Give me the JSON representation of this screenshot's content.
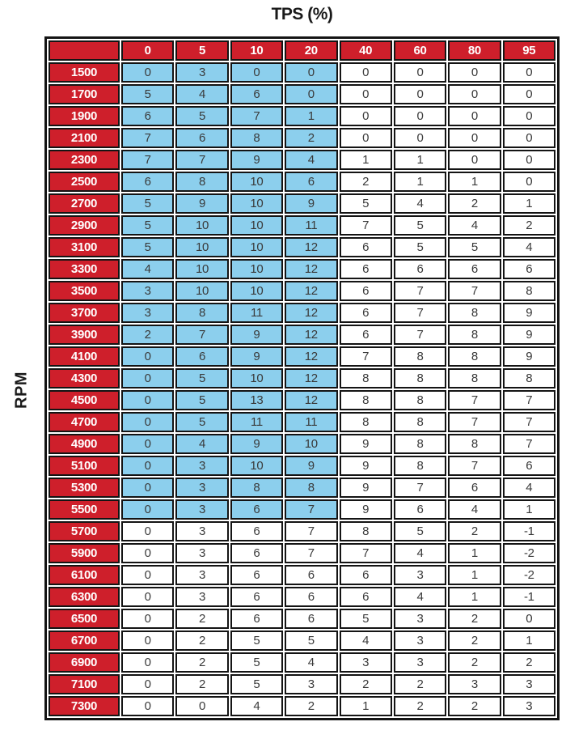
{
  "title": "TPS (%)",
  "y_axis_label": "RPM",
  "colors": {
    "header_red": "#ce1f2b",
    "highlight_blue": "#8ccfed",
    "grid_black": "#141414",
    "header_text": "#ffffff",
    "cell_text": "#3a3a3a",
    "background": "#ffffff"
  },
  "chart_data": {
    "type": "table",
    "title": "TPS (%)",
    "xlabel": "TPS (%)",
    "ylabel": "RPM",
    "columns": [
      "0",
      "5",
      "10",
      "20",
      "40",
      "60",
      "80",
      "95"
    ],
    "rows": [
      {
        "rpm": "1500",
        "values": [
          0,
          3,
          0,
          0,
          0,
          0,
          0,
          0
        ]
      },
      {
        "rpm": "1700",
        "values": [
          5,
          4,
          6,
          0,
          0,
          0,
          0,
          0
        ]
      },
      {
        "rpm": "1900",
        "values": [
          6,
          5,
          7,
          1,
          0,
          0,
          0,
          0
        ]
      },
      {
        "rpm": "2100",
        "values": [
          7,
          6,
          8,
          2,
          0,
          0,
          0,
          0
        ]
      },
      {
        "rpm": "2300",
        "values": [
          7,
          7,
          9,
          4,
          1,
          1,
          0,
          0
        ]
      },
      {
        "rpm": "2500",
        "values": [
          6,
          8,
          10,
          6,
          2,
          1,
          1,
          0
        ]
      },
      {
        "rpm": "2700",
        "values": [
          5,
          9,
          10,
          9,
          5,
          4,
          2,
          1
        ]
      },
      {
        "rpm": "2900",
        "values": [
          5,
          10,
          10,
          11,
          7,
          5,
          4,
          2
        ]
      },
      {
        "rpm": "3100",
        "values": [
          5,
          10,
          10,
          12,
          6,
          5,
          5,
          4
        ]
      },
      {
        "rpm": "3300",
        "values": [
          4,
          10,
          10,
          12,
          6,
          6,
          6,
          6
        ]
      },
      {
        "rpm": "3500",
        "values": [
          3,
          10,
          10,
          12,
          6,
          7,
          7,
          8
        ]
      },
      {
        "rpm": "3700",
        "values": [
          3,
          8,
          11,
          12,
          6,
          7,
          8,
          9
        ]
      },
      {
        "rpm": "3900",
        "values": [
          2,
          7,
          9,
          12,
          6,
          7,
          8,
          9
        ]
      },
      {
        "rpm": "4100",
        "values": [
          0,
          6,
          9,
          12,
          7,
          8,
          8,
          9
        ]
      },
      {
        "rpm": "4300",
        "values": [
          0,
          5,
          10,
          12,
          8,
          8,
          8,
          8
        ]
      },
      {
        "rpm": "4500",
        "values": [
          0,
          5,
          13,
          12,
          8,
          8,
          7,
          7
        ]
      },
      {
        "rpm": "4700",
        "values": [
          0,
          5,
          11,
          11,
          8,
          8,
          7,
          7
        ]
      },
      {
        "rpm": "4900",
        "values": [
          0,
          4,
          9,
          10,
          9,
          8,
          8,
          7
        ]
      },
      {
        "rpm": "5100",
        "values": [
          0,
          3,
          10,
          9,
          9,
          8,
          7,
          6
        ]
      },
      {
        "rpm": "5300",
        "values": [
          0,
          3,
          8,
          8,
          9,
          7,
          6,
          4
        ]
      },
      {
        "rpm": "5500",
        "values": [
          0,
          3,
          6,
          7,
          9,
          6,
          4,
          1
        ]
      },
      {
        "rpm": "5700",
        "values": [
          0,
          3,
          6,
          7,
          8,
          5,
          2,
          -1
        ]
      },
      {
        "rpm": "5900",
        "values": [
          0,
          3,
          6,
          7,
          7,
          4,
          1,
          -2
        ]
      },
      {
        "rpm": "6100",
        "values": [
          0,
          3,
          6,
          6,
          6,
          3,
          1,
          -2
        ]
      },
      {
        "rpm": "6300",
        "values": [
          0,
          3,
          6,
          6,
          6,
          4,
          1,
          -1
        ]
      },
      {
        "rpm": "6500",
        "values": [
          0,
          2,
          6,
          6,
          5,
          3,
          2,
          0
        ]
      },
      {
        "rpm": "6700",
        "values": [
          0,
          2,
          5,
          5,
          4,
          3,
          2,
          1
        ]
      },
      {
        "rpm": "6900",
        "values": [
          0,
          2,
          5,
          4,
          3,
          3,
          2,
          2
        ]
      },
      {
        "rpm": "7100",
        "values": [
          0,
          2,
          5,
          3,
          2,
          2,
          3,
          3
        ]
      },
      {
        "rpm": "7300",
        "values": [
          0,
          0,
          4,
          2,
          1,
          2,
          2,
          3
        ]
      }
    ],
    "highlight": {
      "description": "light blue shaded cell region",
      "column_indexes": [
        0,
        1,
        2,
        3
      ],
      "columns": [
        "0",
        "5",
        "10",
        "20"
      ],
      "rpm_from": "1500",
      "rpm_to": "5500",
      "color": "#8ccfed"
    },
    "legend_position": "none",
    "grid": true
  }
}
